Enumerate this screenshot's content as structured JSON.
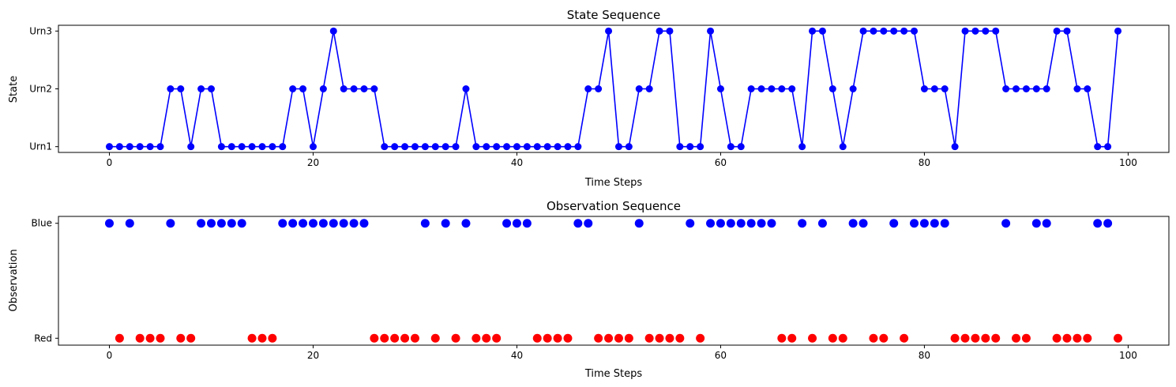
{
  "chart_data": [
    {
      "type": "line",
      "title": "State Sequence",
      "xlabel": "Time Steps",
      "ylabel": "State",
      "xlim": [
        -5,
        104
      ],
      "xticks": [
        0,
        20,
        40,
        60,
        80,
        100
      ],
      "ylim": [
        -0.1,
        2.1
      ],
      "ycategories": [
        "Urn1",
        "Urn2",
        "Urn3"
      ],
      "grid": false,
      "color": "#0000ff",
      "x_start": 0,
      "values": [
        0,
        0,
        0,
        0,
        0,
        0,
        1,
        1,
        0,
        1,
        1,
        0,
        0,
        0,
        0,
        0,
        0,
        0,
        1,
        1,
        0,
        1,
        2,
        1,
        1,
        1,
        1,
        0,
        0,
        0,
        0,
        0,
        0,
        0,
        0,
        1,
        0,
        0,
        0,
        0,
        0,
        0,
        0,
        0,
        0,
        0,
        0,
        1,
        1,
        2,
        0,
        0,
        1,
        1,
        2,
        2,
        0,
        0,
        0,
        2,
        1,
        0,
        0,
        1,
        1,
        1,
        1,
        1,
        0,
        2,
        2,
        1,
        0,
        1,
        2,
        2,
        2,
        2,
        2,
        2,
        1,
        1,
        1,
        0,
        2,
        2,
        2,
        2,
        1,
        1,
        1,
        1,
        1,
        2,
        2,
        1,
        1,
        0,
        0,
        2
      ]
    },
    {
      "type": "scatter",
      "title": "Observation Sequence",
      "xlabel": "Time Steps",
      "ylabel": "Observation",
      "xlim": [
        -5,
        104
      ],
      "xticks": [
        0,
        20,
        40,
        60,
        80,
        100
      ],
      "ylim": [
        -0.06,
        1.06
      ],
      "ycategories": [
        "Red",
        "Blue"
      ],
      "grid": false,
      "colors": {
        "Blue": "#0000ff",
        "Red": "#ff0000"
      },
      "x_start": 0,
      "values": [
        "Blue",
        "Red",
        "Blue",
        "Red",
        "Red",
        "Red",
        "Blue",
        "Red",
        "Red",
        "Blue",
        "Blue",
        "Blue",
        "Blue",
        "Blue",
        "Red",
        "Red",
        "Red",
        "Blue",
        "Blue",
        "Blue",
        "Blue",
        "Blue",
        "Blue",
        "Blue",
        "Blue",
        "Blue",
        "Red",
        "Red",
        "Red",
        "Red",
        "Red",
        "Blue",
        "Red",
        "Blue",
        "Red",
        "Blue",
        "Red",
        "Red",
        "Red",
        "Blue",
        "Blue",
        "Blue",
        "Red",
        "Red",
        "Red",
        "Red",
        "Blue",
        "Blue",
        "Red",
        "Red",
        "Red",
        "Red",
        "Blue",
        "Red",
        "Red",
        "Red",
        "Red",
        "Blue",
        "Red",
        "Blue",
        "Blue",
        "Blue",
        "Blue",
        "Blue",
        "Blue",
        "Blue",
        "Red",
        "Red",
        "Blue",
        "Red",
        "Blue",
        "Red",
        "Red",
        "Blue",
        "Blue",
        "Red",
        "Red",
        "Blue",
        "Red",
        "Blue",
        "Blue",
        "Blue",
        "Blue",
        "Red",
        "Red",
        "Red",
        "Red",
        "Red",
        "Blue",
        "Red",
        "Red",
        "Blue",
        "Blue",
        "Red",
        "Red",
        "Red",
        "Red",
        "Blue",
        "Blue",
        "Red"
      ]
    }
  ]
}
